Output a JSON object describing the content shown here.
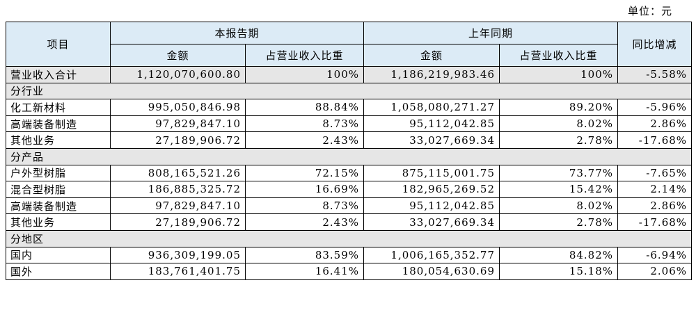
{
  "unit_label": "单位：元",
  "header": {
    "item": "项目",
    "current_period": "本报告期",
    "prior_period": "上年同期",
    "yoy": "同比增减",
    "amount": "金额",
    "share": "占营业收入比重"
  },
  "total": {
    "label": "营业收入合计",
    "cur_amount": "1,120,070,600.80",
    "cur_share": "100%",
    "prev_amount": "1,186,219,983.46",
    "prev_share": "100%",
    "yoy": "-5.58%"
  },
  "sections": [
    {
      "title": "分行业",
      "rows": [
        {
          "label": "化工新材料",
          "cur_amount": "995,050,846.98",
          "cur_share": "88.84%",
          "prev_amount": "1,058,080,271.27",
          "prev_share": "89.20%",
          "yoy": "-5.96%"
        },
        {
          "label": "高端装备制造",
          "cur_amount": "97,829,847.10",
          "cur_share": "8.73%",
          "prev_amount": "95,112,042.85",
          "prev_share": "8.02%",
          "yoy": "2.86%"
        },
        {
          "label": "其他业务",
          "cur_amount": "27,189,906.72",
          "cur_share": "2.43%",
          "prev_amount": "33,027,669.34",
          "prev_share": "2.78%",
          "yoy": "-17.68%"
        }
      ]
    },
    {
      "title": "分产品",
      "rows": [
        {
          "label": "户外型树脂",
          "cur_amount": "808,165,521.26",
          "cur_share": "72.15%",
          "prev_amount": "875,115,001.75",
          "prev_share": "73.77%",
          "yoy": "-7.65%"
        },
        {
          "label": "混合型树脂",
          "cur_amount": "186,885,325.72",
          "cur_share": "16.69%",
          "prev_amount": "182,965,269.52",
          "prev_share": "15.42%",
          "yoy": "2.14%"
        },
        {
          "label": "高端装备制造",
          "cur_amount": "97,829,847.10",
          "cur_share": "8.73%",
          "prev_amount": "95,112,042.85",
          "prev_share": "8.02%",
          "yoy": "2.86%"
        },
        {
          "label": "其他业务",
          "cur_amount": "27,189,906.72",
          "cur_share": "2.43%",
          "prev_amount": "33,027,669.34",
          "prev_share": "2.78%",
          "yoy": "-17.68%"
        }
      ]
    },
    {
      "title": "分地区",
      "rows": [
        {
          "label": "国内",
          "cur_amount": "936,309,199.05",
          "cur_share": "83.59%",
          "prev_amount": "1,006,165,352.77",
          "prev_share": "84.82%",
          "yoy": "-6.94%"
        },
        {
          "label": "国外",
          "cur_amount": "183,761,401.75",
          "cur_share": "16.41%",
          "prev_amount": "180,054,630.69",
          "prev_share": "15.18%",
          "yoy": "2.06%"
        }
      ]
    }
  ],
  "colors": {
    "header_bg": "#dcebf6",
    "section_bg": "#e6e6e6"
  }
}
